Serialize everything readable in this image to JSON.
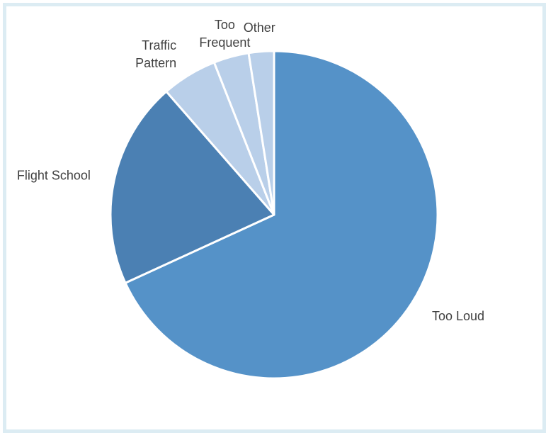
{
  "chart_data": {
    "type": "pie",
    "title": "",
    "start_angle_deg": 0,
    "direction": "clockwise",
    "slices": [
      {
        "label": "Too Loud",
        "value": 68.5,
        "color": "#5592c8",
        "label_lines": [
          "Too Loud"
        ]
      },
      {
        "label": "Flight School",
        "value": 20.5,
        "color": "#4b80b3",
        "label_lines": [
          "Flight School"
        ]
      },
      {
        "label": "Traffic Pattern",
        "value": 5.5,
        "color": "#b9cfe9",
        "label_lines": [
          "Traffic",
          "Pattern"
        ]
      },
      {
        "label": "Too Frequent",
        "value": 3.5,
        "color": "#b9cfe9",
        "label_lines": [
          "Too",
          "Frequent"
        ]
      },
      {
        "label": "Other",
        "value": 2.5,
        "color": "#b9cfe9",
        "label_lines": [
          "Other"
        ]
      }
    ],
    "legend": "none",
    "data_labels": "category names outside slices"
  }
}
